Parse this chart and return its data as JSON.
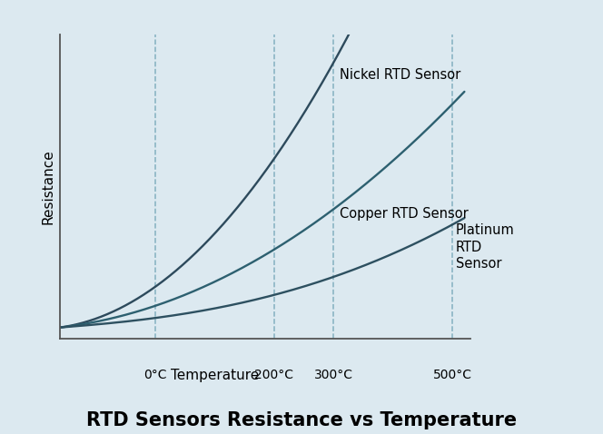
{
  "title": "RTD Sensors Resistance vs Temperature",
  "xlabel": "Temperature",
  "ylabel": "Resistance",
  "fig_bg_color": "#dce9f0",
  "plot_bg_color": "#dce9f0",
  "vline_temps": [
    0,
    200,
    300,
    500
  ],
  "vline_labels": [
    "0°C",
    "200°C",
    "300°C",
    "500°C"
  ],
  "nickel_color": "#2d4a5c",
  "copper_color": "#2d6070",
  "platinum_color": "#2d5060",
  "vline_color": "#7aaabb",
  "title_fontsize": 15,
  "axis_label_fontsize": 11,
  "tick_label_fontsize": 10,
  "annotation_fontsize": 10.5,
  "linewidth": 1.7
}
